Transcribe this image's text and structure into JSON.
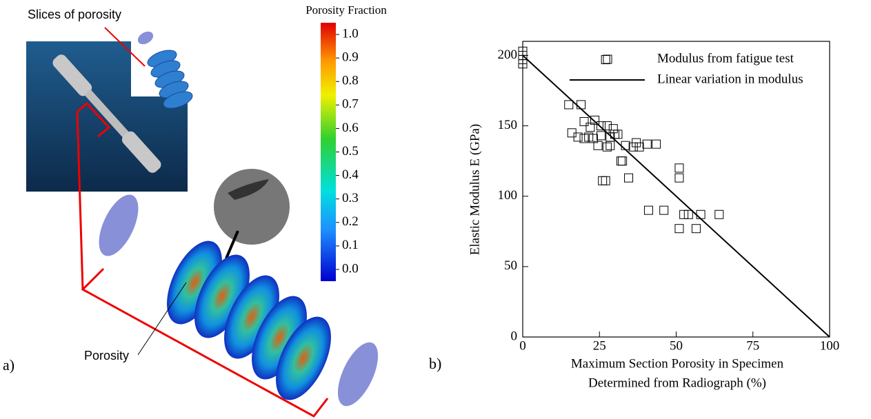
{
  "panel_a": {
    "label": "a)",
    "callout_slices": "Slices of porosity",
    "callout_porosity": "Porosity",
    "colorbar": {
      "title": "Porosity Fraction",
      "lim": [
        -0.05,
        1.05
      ],
      "ticks": [
        {
          "value": 0,
          "label": "0.0"
        },
        0.1,
        0.2,
        0.3,
        0.4,
        0.5,
        0.6,
        0.7,
        0.8,
        0.9,
        {
          "value": 1,
          "label": "1.0"
        }
      ]
    }
  },
  "chart_data": {
    "type": "scatter",
    "label": "b)",
    "xlabel": [
      "Maximum Section Porosity in Specimen",
      "Determined from Radiograph (%)"
    ],
    "ylabel": "Elastic Modulus E (GPa)",
    "xlim": [
      0,
      100
    ],
    "xticks": [
      0,
      25,
      50,
      75,
      100
    ],
    "ylim": [
      0,
      210
    ],
    "yticks": [
      0,
      50,
      100,
      150,
      200
    ],
    "legend": "upper right",
    "series": [
      {
        "name": "Modulus from fatigue test",
        "type": "scatter",
        "marker": "square",
        "color": "#000000",
        "x": [
          0,
          0,
          0,
          0,
          27,
          15,
          19,
          16,
          18,
          20,
          20,
          22,
          23.5,
          25.5,
          23,
          24.5,
          25.5,
          27.5,
          29.5,
          28.5,
          30,
          31,
          32.5,
          32,
          33.5,
          36,
          38,
          40.5,
          43.5,
          37,
          27,
          26,
          34.5,
          41,
          46,
          51,
          51,
          51,
          52.5,
          54,
          56.5,
          58,
          64,
          21.5,
          27.5,
          28.5
        ],
        "y": [
          203,
          200,
          197,
          194,
          197,
          165,
          165,
          145,
          142,
          141,
          153,
          149,
          154,
          150,
          141,
          136,
          143,
          150,
          148,
          136,
          144,
          144,
          125,
          125,
          136,
          135,
          135,
          137,
          137,
          138,
          111,
          111,
          113,
          90,
          90,
          113,
          120,
          77,
          87,
          87,
          77,
          87,
          87,
          142,
          135,
          142
        ]
      },
      {
        "name": "Linear variation in modulus",
        "type": "line",
        "color": "#000000",
        "x": [
          0,
          100
        ],
        "y": [
          200,
          0
        ]
      }
    ]
  }
}
